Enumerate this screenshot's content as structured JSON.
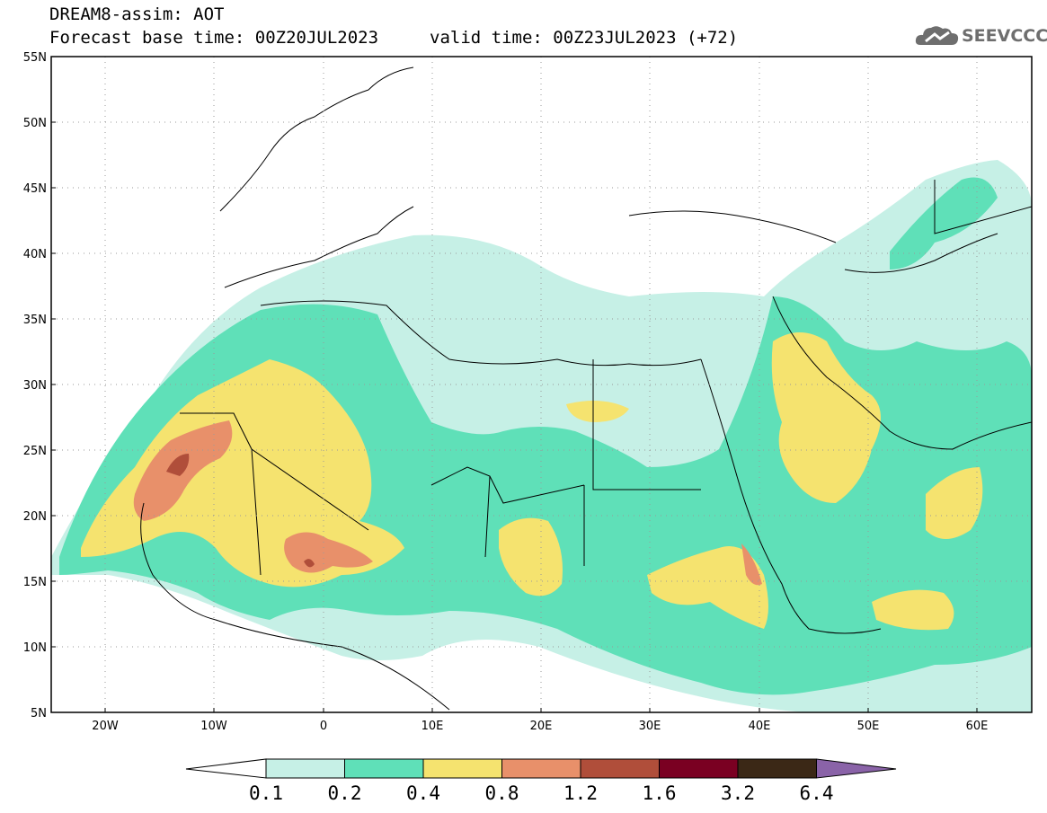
{
  "header": {
    "title": "DREAM8-assim: AOT",
    "base_time": "Forecast base time: 00Z20JUL2023",
    "valid_time": "valid time: 00Z23JUL2023 (+72)"
  },
  "logo": {
    "text": "SEEVCCC",
    "icon": "cloud-icon"
  },
  "map": {
    "lat_labels": [
      "55N",
      "50N",
      "45N",
      "40N",
      "35N",
      "30N",
      "25N",
      "20N",
      "15N",
      "10N",
      "5N"
    ],
    "lon_labels": [
      "20W",
      "10W",
      "0",
      "10E",
      "20E",
      "30E",
      "40E",
      "50E",
      "60E"
    ],
    "lat_range": [
      5,
      55
    ],
    "lon_range": [
      -25,
      65
    ],
    "grid": "dotted"
  },
  "colorbar": {
    "levels": [
      "0.1",
      "0.2",
      "0.4",
      "0.8",
      "1.2",
      "1.6",
      "3.2",
      "6.4"
    ],
    "colors": [
      "#ffffff",
      "#c6f0e6",
      "#5fe0b8",
      "#f5e36f",
      "#e8906a",
      "#b04e3a",
      "#7a0022",
      "#3b2816",
      "#8a63a8"
    ]
  }
}
